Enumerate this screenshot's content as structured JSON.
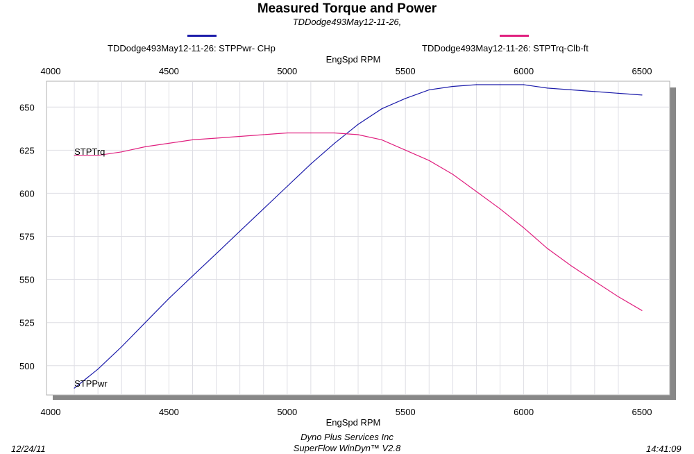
{
  "chart_data": {
    "type": "line",
    "title": "Measured Torque and Power",
    "subtitle": "TDDodge493May12-11-26,",
    "xlabel": "EngSpd  RPM",
    "xlim": [
      4000,
      6500
    ],
    "ylim": [
      483,
      665
    ],
    "x_ticks": [
      "4000",
      "4500",
      "5000",
      "5500",
      "6000",
      "6500"
    ],
    "y_ticks": [
      "500",
      "525",
      "550",
      "575",
      "600",
      "625",
      "650"
    ],
    "grid": true,
    "legend_placement": "top",
    "series": [
      {
        "name": "TDDodge493May12-11-26: STPPwr- CHp",
        "label": "STPPwr",
        "color": "#1c1caa",
        "x": [
          4100,
          4200,
          4300,
          4400,
          4500,
          4600,
          4700,
          4800,
          4900,
          5000,
          5100,
          5200,
          5300,
          5400,
          5500,
          5600,
          5700,
          5800,
          5900,
          6000,
          6100,
          6200,
          6300,
          6400,
          6500
        ],
        "values": [
          487,
          498,
          511,
          525,
          539,
          552,
          565,
          578,
          591,
          604,
          617,
          629,
          640,
          649,
          655,
          660,
          662,
          663,
          663,
          663,
          661,
          660,
          659,
          658,
          657
        ]
      },
      {
        "name": "TDDodge493May12-11-26: STPTrq-Clb-ft",
        "label": "STPTrq",
        "color": "#e0207f",
        "x": [
          4100,
          4200,
          4300,
          4400,
          4500,
          4600,
          4700,
          4800,
          4900,
          5000,
          5100,
          5200,
          5300,
          5400,
          5500,
          5600,
          5700,
          5800,
          5900,
          6000,
          6100,
          6200,
          6300,
          6400,
          6500
        ],
        "values": [
          622,
          622,
          624,
          627,
          629,
          631,
          632,
          633,
          634,
          635,
          635,
          635,
          634,
          631,
          625,
          619,
          611,
          601,
          591,
          580,
          568,
          558,
          549,
          540,
          532
        ]
      }
    ]
  },
  "footer": {
    "date": "12/24/11",
    "company": "Dyno Plus Services Inc",
    "software": "SuperFlow WinDyn™ V2.8",
    "time": "14:41:09"
  }
}
